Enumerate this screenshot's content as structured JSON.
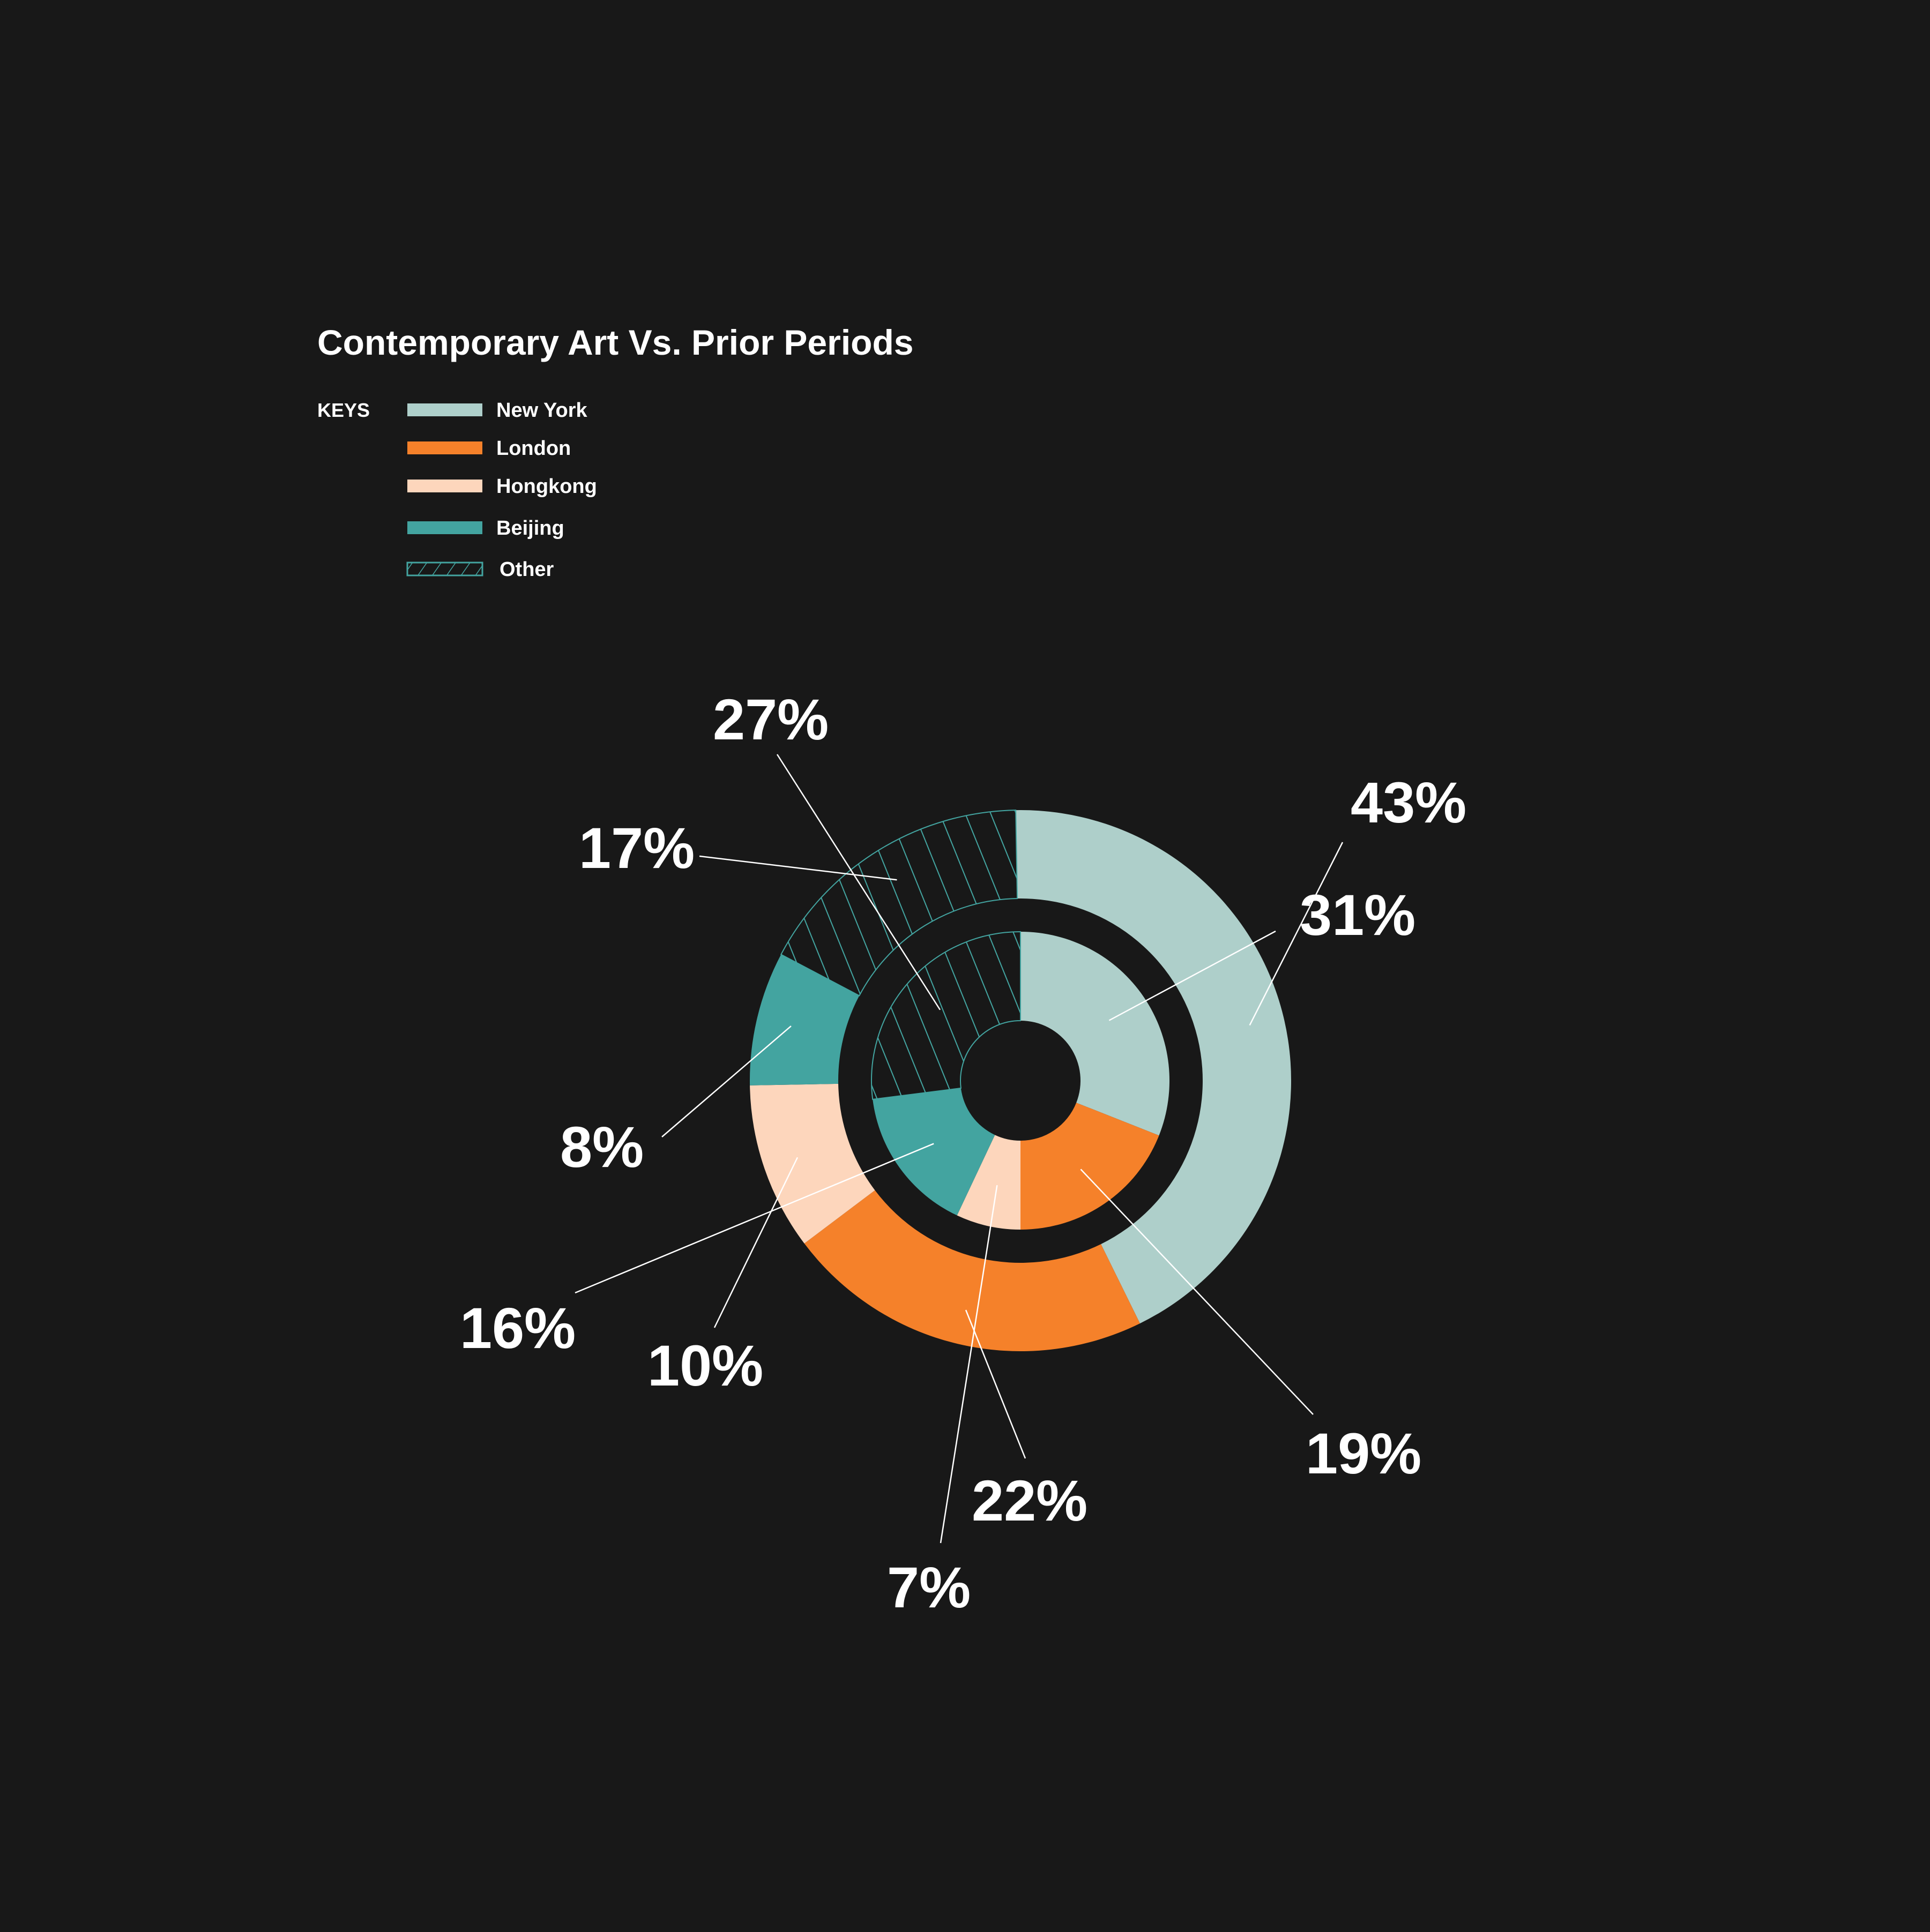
{
  "chart_data": {
    "type": "pie",
    "title": "Contemporary Art Vs. Prior Periods",
    "legend_heading": "KEYS",
    "legend_placement": "top-left",
    "categories": [
      "New York",
      "London",
      "Hongkong",
      "Beijing",
      "Other"
    ],
    "colors": [
      "#aecfca",
      "#f5812a",
      "#fdd6bc",
      "#43a4a0",
      "#181818"
    ],
    "hatch_color": "#43a4a0",
    "hatched_category": "Other",
    "series": [
      {
        "ring": "outer",
        "values": [
          43,
          22,
          10,
          8,
          17
        ],
        "labels": [
          "43%",
          "22%",
          "10%",
          "8%",
          "17%"
        ]
      },
      {
        "ring": "inner",
        "values": [
          31,
          19,
          7,
          16,
          27
        ],
        "labels": [
          "31%",
          "19%",
          "7%",
          "16%",
          "27%"
        ]
      }
    ]
  }
}
